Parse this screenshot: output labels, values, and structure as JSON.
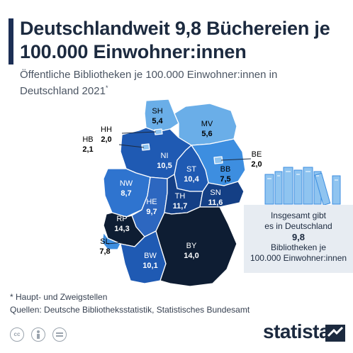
{
  "header": {
    "title": "Deutschlandweit 9,8 Büchereien je 100.000 Einwohner:innen",
    "subtitle": "Öffentliche Bibliotheken je 100.000 Einwohner:innen in Deutschland 2021",
    "subtitle_mark": "*"
  },
  "states": [
    {
      "code": "SH",
      "value": "5,4",
      "color": "#6aaee8"
    },
    {
      "code": "HH",
      "value": "2,0",
      "color": "#8fc4f0"
    },
    {
      "code": "HB",
      "value": "2,1",
      "color": "#8fc4f0"
    },
    {
      "code": "MV",
      "value": "5,6",
      "color": "#6aaee8"
    },
    {
      "code": "NI",
      "value": "10,5",
      "color": "#1f5ab3"
    },
    {
      "code": "BB",
      "value": "7,5",
      "color": "#3d8ee0"
    },
    {
      "code": "BE",
      "value": "2,0",
      "color": "#8fc4f0"
    },
    {
      "code": "ST",
      "value": "10,4",
      "color": "#1f5ab3"
    },
    {
      "code": "NW",
      "value": "8,7",
      "color": "#2f74cf"
    },
    {
      "code": "HE",
      "value": "9,7",
      "color": "#2d67c0"
    },
    {
      "code": "TH",
      "value": "11,7",
      "color": "#143f85"
    },
    {
      "code": "SN",
      "value": "11,6",
      "color": "#143f85"
    },
    {
      "code": "RP",
      "value": "14,3",
      "color": "#0e1d33"
    },
    {
      "code": "SL",
      "value": "7,8",
      "color": "#3d8ee0"
    },
    {
      "code": "BW",
      "value": "10,1",
      "color": "#1f5ab3"
    },
    {
      "code": "BY",
      "value": "14,0",
      "color": "#0e1d33"
    }
  ],
  "summary": {
    "line1": "Insgesamt gibt",
    "line2": "es in Deutschland",
    "value": "9,8",
    "line3": "Bibliotheken je",
    "line4": "100.000 Einwohner:innen"
  },
  "footnote": "* Haupt- und Zweigstellen",
  "sources": "Quellen: Deutsche Bibliotheksstatistik, Statistisches Bundesamt",
  "license_icons": [
    "cc-icon",
    "person-icon",
    "equals-icon"
  ],
  "logo": "statista"
}
